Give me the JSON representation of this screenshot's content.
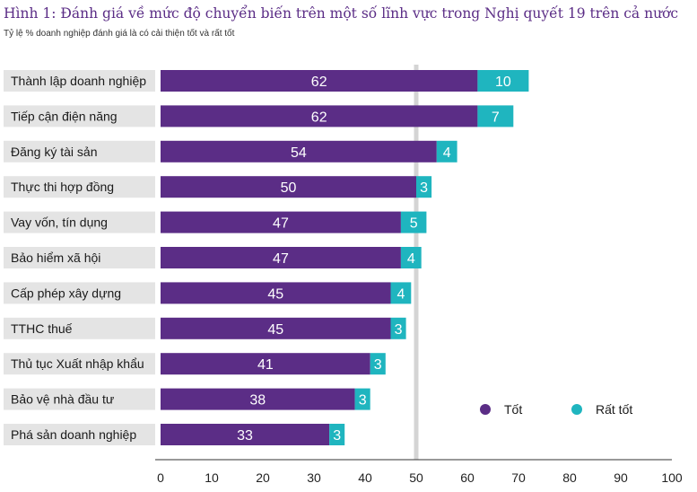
{
  "chart_data": {
    "type": "bar",
    "orientation": "horizontal",
    "stacked": true,
    "title": "Hình 1: Đánh giá về mức độ chuyển biến trên một số lĩnh vực trong Nghị quyết 19 trên cả nước",
    "subtitle": "Tỷ lệ % doanh nghiệp đánh giá là có cải thiện tốt và rất tốt",
    "categories": [
      "Thành lập doanh nghiệp",
      "Tiếp cận điện năng",
      "Đăng ký tài sản",
      "Thực thi hợp đồng",
      "Vay vốn, tín dụng",
      "Bảo hiểm xã hội",
      "Cấp phép xây dựng",
      "TTHC thuế",
      "Thủ tục Xuất nhập khẩu",
      "Bảo vệ nhà đầu tư",
      "Phá sản doanh nghiệp"
    ],
    "series": [
      {
        "name": "Tốt",
        "color": "#5b2d86",
        "values": [
          62,
          62,
          54,
          50,
          47,
          47,
          45,
          45,
          41,
          38,
          33
        ]
      },
      {
        "name": "Rất tốt",
        "color": "#1fb5bf",
        "values": [
          10,
          7,
          4,
          3,
          5,
          4,
          4,
          3,
          3,
          3,
          3
        ]
      }
    ],
    "xlim": [
      0,
      100
    ],
    "xticks": [
      0,
      10,
      20,
      30,
      40,
      50,
      60,
      70,
      80,
      90,
      100
    ],
    "reference_line": 50,
    "legend_position": "bottom-right",
    "grid": false
  }
}
